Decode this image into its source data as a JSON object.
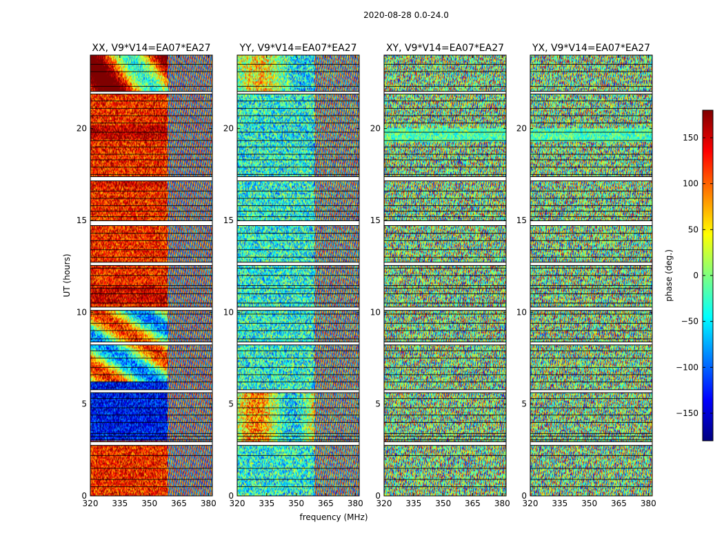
{
  "figure_title": "2020-08-28 0.0-24.0",
  "colorbar": {
    "label": "phase (deg.)",
    "min": -180,
    "max": 180,
    "tick_labels": [
      "150",
      "100",
      "50",
      "0",
      "−50",
      "−100",
      "−150"
    ],
    "tick_values": [
      150,
      100,
      50,
      0,
      -50,
      -100,
      -150
    ],
    "colormap": "jet"
  },
  "colors": {
    "jet": [
      "#00007f",
      "#0000ff",
      "#007fff",
      "#00ffff",
      "#7fff7f",
      "#ffff00",
      "#ff7f00",
      "#ff0000",
      "#7f0000"
    ],
    "background": "#ffffff",
    "gap": "#ffffff",
    "flag_line": "#000000"
  },
  "chart_data": [
    {
      "type": "heatmap",
      "title": "XX, V9*V14=EA07*EA27",
      "xlabel": "",
      "ylabel": "UT (hours)",
      "xlim": [
        320,
        382
      ],
      "ylim": [
        0,
        24
      ],
      "x_tick_labels": [
        "320",
        "335",
        "350",
        "365",
        "380"
      ],
      "x_tick_values": [
        320,
        335,
        350,
        365,
        380
      ],
      "y_tick_labels": [
        "0",
        "5",
        "10",
        "15",
        "20"
      ],
      "y_tick_values": [
        0,
        5,
        10,
        15,
        20
      ],
      "pattern": "coherent-low-freq"
    },
    {
      "type": "heatmap",
      "title": "YY, V9*V14=EA07*EA27",
      "xlabel": "frequency (MHz)",
      "ylabel": "",
      "xlim": [
        320,
        382
      ],
      "ylim": [
        0,
        24
      ],
      "x_tick_labels": [
        "320",
        "335",
        "350",
        "365",
        "380"
      ],
      "x_tick_values": [
        320,
        335,
        350,
        365,
        380
      ],
      "y_tick_labels": [
        "0",
        "5",
        "10",
        "15",
        "20"
      ],
      "y_tick_values": [
        0,
        5,
        10,
        15,
        20
      ],
      "pattern": "coherent-cyan"
    },
    {
      "type": "heatmap",
      "title": "XY, V9*V14=EA07*EA27",
      "xlabel": "",
      "ylabel": "",
      "xlim": [
        320,
        382
      ],
      "ylim": [
        0,
        24
      ],
      "x_tick_labels": [
        "320",
        "335",
        "350",
        "365",
        "380"
      ],
      "x_tick_values": [
        320,
        335,
        350,
        365,
        380
      ],
      "y_tick_labels": [
        "0",
        "5",
        "10",
        "15",
        "20"
      ],
      "y_tick_values": [
        0,
        5,
        10,
        15,
        20
      ],
      "pattern": "noise"
    },
    {
      "type": "heatmap",
      "title": "YX, V9*V14=EA07*EA27",
      "xlabel": "",
      "ylabel": "",
      "xlim": [
        320,
        382
      ],
      "ylim": [
        0,
        24
      ],
      "x_tick_labels": [
        "320",
        "335",
        "350",
        "365",
        "380"
      ],
      "x_tick_values": [
        320,
        335,
        350,
        365,
        380
      ],
      "y_tick_labels": [
        "0",
        "5",
        "10",
        "15",
        "20"
      ],
      "y_tick_values": [
        0,
        5,
        10,
        15,
        20
      ],
      "pattern": "noise"
    }
  ],
  "data_gaps_hours": [
    [
      2.75,
      2.95
    ],
    [
      5.62,
      5.78
    ],
    [
      8.22,
      8.38
    ],
    [
      10.1,
      10.28
    ],
    [
      12.55,
      12.72
    ],
    [
      14.72,
      14.98
    ],
    [
      17.15,
      17.38
    ],
    [
      21.88,
      22.02
    ]
  ],
  "flag_lines_hours": [
    0.5,
    0.9,
    1.5,
    2.2,
    3.05,
    3.25,
    3.4,
    4.0,
    4.4,
    4.8,
    5.3,
    6.2,
    6.6,
    7.0,
    7.5,
    7.9,
    8.55,
    9.0,
    9.4,
    9.9,
    10.5,
    11.0,
    11.3,
    11.45,
    12.0,
    12.4,
    13.0,
    13.4,
    13.9,
    14.3,
    15.2,
    15.5,
    15.8,
    16.2,
    16.6,
    17.5,
    17.9,
    18.3,
    18.6,
    19.0,
    19.35,
    19.8,
    20.3,
    20.7,
    21.1,
    21.5,
    22.3,
    23.1,
    23.5
  ]
}
